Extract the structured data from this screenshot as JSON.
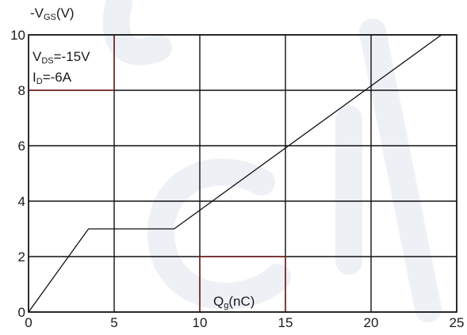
{
  "chart_data": {
    "type": "line",
    "title": "",
    "ylabel": {
      "prefix": "-V",
      "sub": "GS",
      "suffix": "(V)"
    },
    "xlabel": {
      "main": "Q",
      "sub": "g",
      "suffix": "(nC)"
    },
    "xlim": [
      0,
      25
    ],
    "ylim": [
      0,
      10
    ],
    "xticks": [
      "0",
      "5",
      "10",
      "15",
      "20",
      "25"
    ],
    "yticks": [
      "0",
      "2",
      "4",
      "6",
      "8",
      "10"
    ],
    "grid": true,
    "conditions": [
      {
        "main": "V",
        "sub": "DS",
        "value": "=-15V"
      },
      {
        "main": "I",
        "sub": "D",
        "value": "=-6A"
      }
    ],
    "series": [
      {
        "x": [
          0,
          3.5,
          8.5,
          25
        ],
        "y": [
          0,
          3.0,
          3.0,
          10.4
        ]
      }
    ],
    "colors": {
      "line": "#111111",
      "grid": "#111111",
      "highlight": "#7a1f1f",
      "watermark": "#dfe6ef"
    }
  }
}
